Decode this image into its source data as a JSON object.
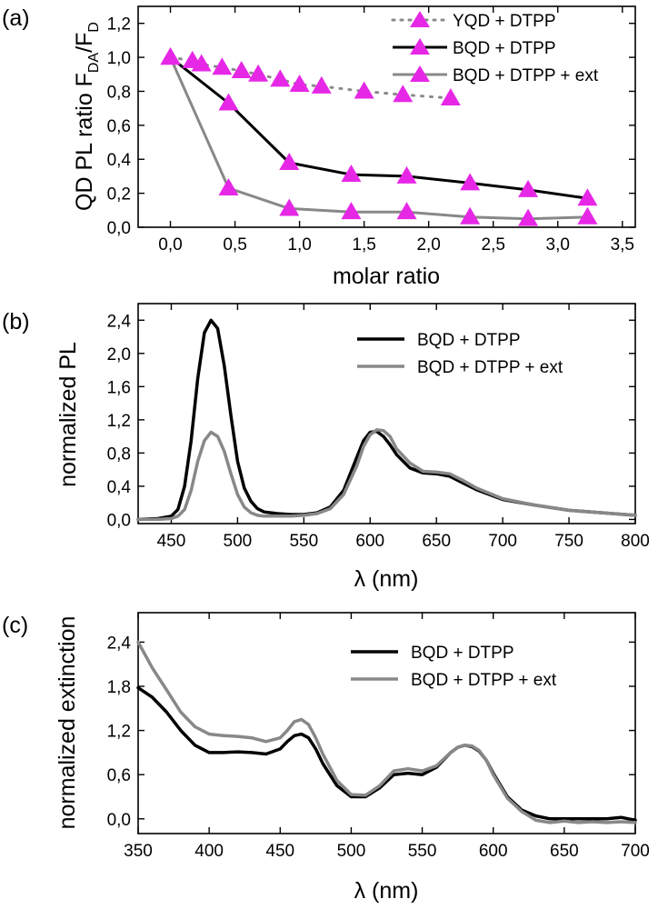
{
  "chart_data": [
    {
      "panel": "(a)",
      "type": "line",
      "xlabel": "molar ratio",
      "ylabel_main": "QD PL ratio F",
      "ylabel_sub1": "DA",
      "ylabel_mid": "/F",
      "ylabel_sub2": "D",
      "xlim": [
        -0.25,
        3.6
      ],
      "ylim": [
        0.0,
        1.3
      ],
      "xticks": [
        "0,0",
        "0,5",
        "1,0",
        "1,5",
        "2,0",
        "2,5",
        "3,0",
        "3,5"
      ],
      "xtick_values": [
        0.0,
        0.5,
        1.0,
        1.5,
        2.0,
        2.5,
        3.0,
        3.5
      ],
      "yticks": [
        "0,0",
        "0,2",
        "0,4",
        "0,6",
        "0,8",
        "1,0",
        "1,2"
      ],
      "ytick_values": [
        0.0,
        0.2,
        0.4,
        0.6,
        0.8,
        1.0,
        1.2
      ],
      "legend_position": "top-right",
      "marker_color": "#e628e6",
      "series": [
        {
          "name": "YQD + DTPP",
          "color": "#8a8a8a",
          "dash": "dotted",
          "width": 3,
          "x": [
            0.0,
            0.17,
            0.24,
            0.4,
            0.55,
            0.68,
            0.85,
            1.0,
            1.17,
            1.5,
            1.8,
            2.17
          ],
          "y": [
            1.0,
            0.98,
            0.96,
            0.94,
            0.92,
            0.9,
            0.87,
            0.84,
            0.83,
            0.8,
            0.78,
            0.76
          ]
        },
        {
          "name": "BQD + DTPP",
          "color": "#000000",
          "dash": "solid",
          "width": 3,
          "x": [
            0.0,
            0.45,
            0.92,
            1.4,
            1.83,
            2.32,
            2.77,
            3.23
          ],
          "y": [
            1.0,
            0.73,
            0.38,
            0.31,
            0.3,
            0.26,
            0.22,
            0.17
          ]
        },
        {
          "name": "BQD + DTPP + ext",
          "color": "#888888",
          "dash": "solid",
          "width": 3,
          "x": [
            0.0,
            0.45,
            0.92,
            1.4,
            1.83,
            2.32,
            2.77,
            3.23
          ],
          "y": [
            1.0,
            0.23,
            0.11,
            0.09,
            0.09,
            0.06,
            0.05,
            0.06
          ]
        }
      ]
    },
    {
      "panel": "(b)",
      "type": "line",
      "xlabel": "λ (nm)",
      "ylabel": "normalized PL",
      "xlim": [
        425,
        800
      ],
      "ylim": [
        -0.05,
        2.6
      ],
      "xticks": [
        "450",
        "500",
        "550",
        "600",
        "650",
        "700",
        "750",
        "800"
      ],
      "xtick_values": [
        450,
        500,
        550,
        600,
        650,
        700,
        750,
        800
      ],
      "yticks": [
        "0,0",
        "0,4",
        "0,8",
        "1,2",
        "1,6",
        "2,0",
        "2,4"
      ],
      "ytick_values": [
        0.0,
        0.4,
        0.8,
        1.2,
        1.6,
        2.0,
        2.4
      ],
      "legend_position": "top-right",
      "series": [
        {
          "name": "BQD + DTPP",
          "color": "#000000",
          "width": 3.5,
          "x": [
            425,
            440,
            450,
            455,
            460,
            465,
            470,
            475,
            480,
            485,
            490,
            495,
            500,
            505,
            510,
            515,
            520,
            530,
            540,
            550,
            560,
            570,
            580,
            590,
            595,
            600,
            605,
            610,
            615,
            620,
            630,
            640,
            650,
            660,
            670,
            680,
            700,
            725,
            750,
            775,
            800
          ],
          "y": [
            0.0,
            0.01,
            0.04,
            0.12,
            0.4,
            0.95,
            1.7,
            2.25,
            2.4,
            2.3,
            1.85,
            1.25,
            0.7,
            0.38,
            0.22,
            0.13,
            0.09,
            0.07,
            0.06,
            0.06,
            0.08,
            0.15,
            0.35,
            0.75,
            0.95,
            1.05,
            1.06,
            1.0,
            0.9,
            0.78,
            0.62,
            0.56,
            0.55,
            0.52,
            0.44,
            0.36,
            0.24,
            0.17,
            0.11,
            0.08,
            0.05
          ]
        },
        {
          "name": "BQD + DTPP + ext",
          "color": "#888888",
          "width": 3.5,
          "x": [
            425,
            440,
            450,
            455,
            460,
            465,
            470,
            475,
            480,
            485,
            490,
            495,
            500,
            505,
            510,
            515,
            520,
            530,
            540,
            550,
            560,
            570,
            580,
            590,
            595,
            600,
            605,
            610,
            615,
            620,
            630,
            640,
            650,
            660,
            670,
            680,
            700,
            725,
            750,
            775,
            800
          ],
          "y": [
            0.0,
            0.0,
            0.01,
            0.04,
            0.12,
            0.35,
            0.7,
            0.95,
            1.05,
            1.0,
            0.82,
            0.55,
            0.3,
            0.15,
            0.08,
            0.05,
            0.04,
            0.04,
            0.04,
            0.05,
            0.07,
            0.13,
            0.3,
            0.65,
            0.88,
            1.02,
            1.08,
            1.07,
            1.0,
            0.85,
            0.68,
            0.58,
            0.57,
            0.55,
            0.47,
            0.38,
            0.25,
            0.17,
            0.11,
            0.08,
            0.05
          ]
        }
      ]
    },
    {
      "panel": "(c)",
      "type": "line",
      "xlabel": "λ (nm)",
      "ylabel": "normalized extinction",
      "xlim": [
        350,
        700
      ],
      "ylim": [
        -0.2,
        2.8
      ],
      "xticks": [
        "350",
        "400",
        "450",
        "500",
        "550",
        "600",
        "650",
        "700"
      ],
      "xtick_values": [
        350,
        400,
        450,
        500,
        550,
        600,
        650,
        700
      ],
      "yticks": [
        "0,0",
        "0,6",
        "1,2",
        "1,8",
        "2,4"
      ],
      "ytick_values": [
        0.0,
        0.6,
        1.2,
        1.8,
        2.4
      ],
      "legend_position": "top-right",
      "series": [
        {
          "name": "BQD + DTPP",
          "color": "#000000",
          "width": 3.5,
          "x": [
            350,
            360,
            370,
            380,
            390,
            400,
            410,
            420,
            430,
            440,
            450,
            455,
            460,
            465,
            470,
            475,
            480,
            490,
            500,
            510,
            520,
            530,
            540,
            550,
            560,
            570,
            575,
            580,
            585,
            590,
            595,
            600,
            610,
            620,
            630,
            640,
            650,
            660,
            670,
            680,
            690,
            700
          ],
          "y": [
            1.78,
            1.65,
            1.45,
            1.2,
            1.0,
            0.9,
            0.9,
            0.91,
            0.9,
            0.88,
            0.95,
            1.05,
            1.13,
            1.15,
            1.1,
            0.95,
            0.75,
            0.45,
            0.3,
            0.3,
            0.42,
            0.6,
            0.62,
            0.6,
            0.7,
            0.9,
            0.97,
            1.0,
            0.98,
            0.92,
            0.8,
            0.62,
            0.3,
            0.12,
            0.04,
            0.0,
            0.0,
            0.0,
            0.0,
            0.0,
            0.02,
            -0.02
          ]
        },
        {
          "name": "BQD + DTPP + ext",
          "color": "#888888",
          "width": 3.5,
          "x": [
            350,
            360,
            370,
            380,
            390,
            400,
            410,
            420,
            430,
            440,
            450,
            455,
            460,
            465,
            470,
            475,
            480,
            490,
            500,
            510,
            520,
            530,
            540,
            550,
            560,
            570,
            575,
            580,
            585,
            590,
            595,
            600,
            610,
            620,
            630,
            640,
            650,
            660,
            670,
            680,
            690,
            700
          ],
          "y": [
            2.4,
            2.05,
            1.75,
            1.45,
            1.25,
            1.15,
            1.13,
            1.12,
            1.1,
            1.05,
            1.1,
            1.2,
            1.32,
            1.35,
            1.28,
            1.1,
            0.88,
            0.52,
            0.33,
            0.32,
            0.45,
            0.65,
            0.68,
            0.65,
            0.72,
            0.9,
            0.97,
            1.0,
            0.99,
            0.93,
            0.8,
            0.6,
            0.28,
            0.1,
            -0.02,
            -0.05,
            -0.03,
            -0.05,
            -0.04,
            -0.05,
            -0.04,
            -0.05
          ]
        }
      ]
    }
  ]
}
